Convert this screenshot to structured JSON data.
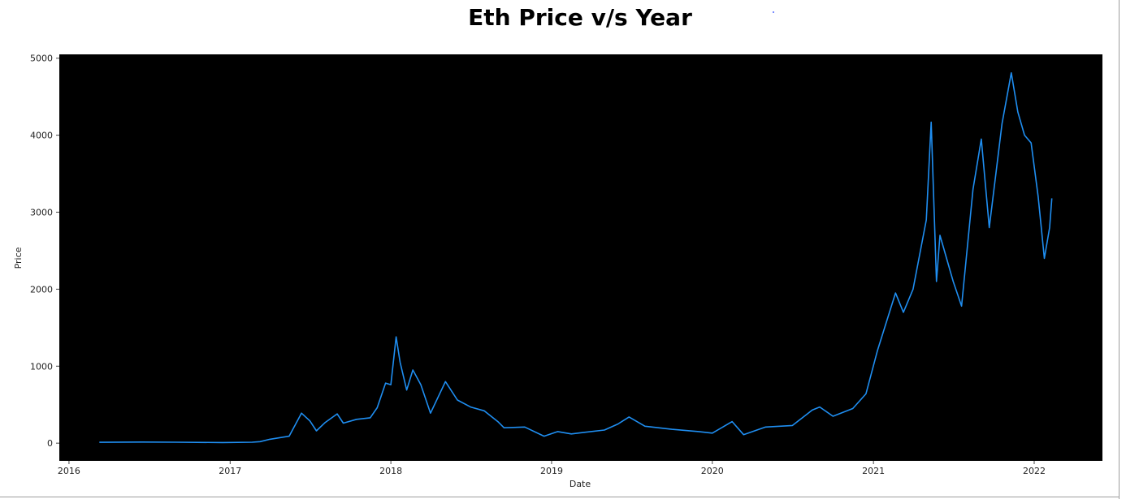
{
  "chart_data": {
    "type": "line",
    "title": "Eth Price v/s Year",
    "xlabel": "Date",
    "ylabel": "Price",
    "xlim": [
      "2015-12-10",
      "2022-06-05"
    ],
    "ylim": [
      -230,
      5050
    ],
    "x_ticks": [
      {
        "date": "2016-01-01",
        "label": "2016"
      },
      {
        "date": "2017-01-01",
        "label": "2017"
      },
      {
        "date": "2018-01-01",
        "label": "2018"
      },
      {
        "date": "2019-01-01",
        "label": "2019"
      },
      {
        "date": "2020-01-01",
        "label": "2020"
      },
      {
        "date": "2021-01-01",
        "label": "2021"
      },
      {
        "date": "2022-01-01",
        "label": "2022"
      }
    ],
    "y_ticks": [
      {
        "value": 0,
        "label": "0"
      },
      {
        "value": 1000,
        "label": "1000"
      },
      {
        "value": 2000,
        "label": "2000"
      },
      {
        "value": 3000,
        "label": "3000"
      },
      {
        "value": 4000,
        "label": "4000"
      },
      {
        "value": 5000,
        "label": "5000"
      }
    ],
    "grid": false,
    "plot_background": "#000000",
    "series": [
      {
        "color": "#1f8ef1",
        "points": [
          [
            "2016-03-10",
            11
          ],
          [
            "2016-06-15",
            14
          ],
          [
            "2016-09-01",
            12
          ],
          [
            "2016-12-15",
            8
          ],
          [
            "2017-02-20",
            12
          ],
          [
            "2017-03-10",
            20
          ],
          [
            "2017-04-01",
            50
          ],
          [
            "2017-05-15",
            90
          ],
          [
            "2017-06-12",
            390
          ],
          [
            "2017-07-01",
            290
          ],
          [
            "2017-07-16",
            160
          ],
          [
            "2017-08-05",
            270
          ],
          [
            "2017-09-01",
            380
          ],
          [
            "2017-09-15",
            260
          ],
          [
            "2017-10-15",
            310
          ],
          [
            "2017-11-15",
            330
          ],
          [
            "2017-12-01",
            460
          ],
          [
            "2017-12-20",
            780
          ],
          [
            "2018-01-01",
            760
          ],
          [
            "2018-01-13",
            1380
          ],
          [
            "2018-01-22",
            1050
          ],
          [
            "2018-02-06",
            690
          ],
          [
            "2018-02-20",
            950
          ],
          [
            "2018-03-10",
            760
          ],
          [
            "2018-04-01",
            390
          ],
          [
            "2018-05-05",
            800
          ],
          [
            "2018-06-01",
            560
          ],
          [
            "2018-07-01",
            470
          ],
          [
            "2018-08-01",
            420
          ],
          [
            "2018-09-01",
            280
          ],
          [
            "2018-09-15",
            200
          ],
          [
            "2018-11-01",
            210
          ],
          [
            "2018-12-15",
            90
          ],
          [
            "2019-01-15",
            150
          ],
          [
            "2019-02-15",
            120
          ],
          [
            "2019-03-15",
            140
          ],
          [
            "2019-05-01",
            170
          ],
          [
            "2019-06-01",
            250
          ],
          [
            "2019-06-26",
            340
          ],
          [
            "2019-08-01",
            220
          ],
          [
            "2019-10-01",
            180
          ],
          [
            "2019-12-01",
            150
          ],
          [
            "2020-01-01",
            130
          ],
          [
            "2020-02-15",
            280
          ],
          [
            "2020-03-12",
            110
          ],
          [
            "2020-05-01",
            210
          ],
          [
            "2020-07-01",
            230
          ],
          [
            "2020-08-15",
            430
          ],
          [
            "2020-09-01",
            470
          ],
          [
            "2020-10-01",
            350
          ],
          [
            "2020-11-15",
            450
          ],
          [
            "2020-12-15",
            640
          ],
          [
            "2021-01-10",
            1200
          ],
          [
            "2021-02-20",
            1950
          ],
          [
            "2021-03-10",
            1700
          ],
          [
            "2021-04-01",
            2000
          ],
          [
            "2021-05-01",
            2900
          ],
          [
            "2021-05-12",
            4170
          ],
          [
            "2021-05-24",
            2100
          ],
          [
            "2021-06-01",
            2700
          ],
          [
            "2021-07-01",
            2100
          ],
          [
            "2021-07-20",
            1780
          ],
          [
            "2021-08-15",
            3300
          ],
          [
            "2021-09-03",
            3950
          ],
          [
            "2021-09-21",
            2800
          ],
          [
            "2021-10-20",
            4150
          ],
          [
            "2021-11-10",
            4810
          ],
          [
            "2021-11-25",
            4300
          ],
          [
            "2021-12-10",
            4000
          ],
          [
            "2021-12-25",
            3900
          ],
          [
            "2022-01-10",
            3200
          ],
          [
            "2022-01-24",
            2400
          ],
          [
            "2022-02-05",
            2800
          ],
          [
            "2022-02-10",
            3180
          ]
        ]
      }
    ]
  }
}
